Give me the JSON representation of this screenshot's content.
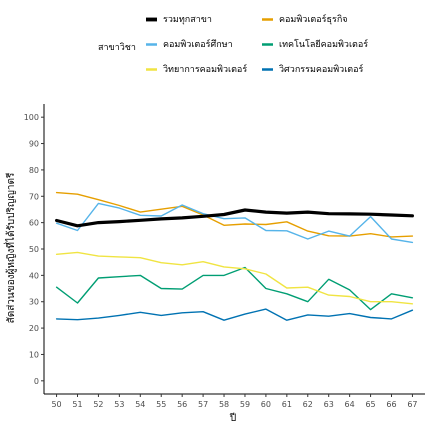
{
  "chart_data": {
    "type": "line",
    "xlabel": "ปี",
    "ylabel": "สัดส่วนของผู้หญิงที่ได้รับปริญญาตรี",
    "ylim": [
      0,
      100
    ],
    "yticks": [
      0,
      10,
      20,
      30,
      40,
      50,
      60,
      70,
      80,
      90,
      100
    ],
    "x": [
      50,
      51,
      52,
      53,
      54,
      55,
      56,
      57,
      58,
      59,
      60,
      61,
      62,
      63,
      64,
      65,
      66,
      67
    ],
    "grid": false,
    "legend_position": "top",
    "legend_title": "สาขาวิชา",
    "series": [
      {
        "name": "รวมทุกสาขา",
        "color": "#000000",
        "width": 3.2,
        "values": [
          60.8,
          58.8,
          60.0,
          60.4,
          60.9,
          61.4,
          61.8,
          62.4,
          63.1,
          64.8,
          64.0,
          63.6,
          64.0,
          63.4,
          63.3,
          63.2,
          62.9,
          62.6
        ]
      },
      {
        "name": "คอมพิวเตอร์ธุรกิจ",
        "color": "#E69F00",
        "width": 1.4,
        "values": [
          71.4,
          70.8,
          68.7,
          66.5,
          64.0,
          65.1,
          66.2,
          62.9,
          59.0,
          59.5,
          59.3,
          60.3,
          56.8,
          55.0,
          54.9,
          55.8,
          54.6,
          54.9
        ]
      },
      {
        "name": "คอมพิวเตอร์ศึกษา",
        "color": "#56B4E9",
        "width": 1.4,
        "values": [
          59.8,
          57.0,
          67.3,
          65.5,
          62.8,
          62.5,
          66.7,
          63.4,
          61.5,
          61.8,
          57.0,
          56.9,
          53.8,
          56.8,
          54.9,
          62.3,
          53.8,
          52.5
        ]
      },
      {
        "name": "เทคโนโลยีคอมพิวเตอร์",
        "color": "#009E73",
        "width": 1.4,
        "values": [
          35.5,
          29.5,
          39.0,
          39.5,
          40.0,
          35.0,
          34.8,
          40.0,
          40.0,
          43.0,
          35.0,
          33.0,
          30.0,
          38.5,
          34.5,
          27.0,
          33.0,
          31.5
        ]
      },
      {
        "name": "วิทยาการคอมพิวเตอร์",
        "color": "#F0E442",
        "width": 1.4,
        "values": [
          48.0,
          48.7,
          47.3,
          47.0,
          46.7,
          44.8,
          44.0,
          45.2,
          43.2,
          42.5,
          40.5,
          35.2,
          35.5,
          32.5,
          32.0,
          30.0,
          30.0,
          29.2
        ]
      },
      {
        "name": "วิศวกรรมคอมพิวเตอร์",
        "color": "#0072B2",
        "width": 1.4,
        "values": [
          23.5,
          23.2,
          23.8,
          24.8,
          26.0,
          24.8,
          25.8,
          26.2,
          23.0,
          25.3,
          27.2,
          23.0,
          25.0,
          24.5,
          25.5,
          24.0,
          23.5,
          26.8
        ]
      }
    ]
  }
}
